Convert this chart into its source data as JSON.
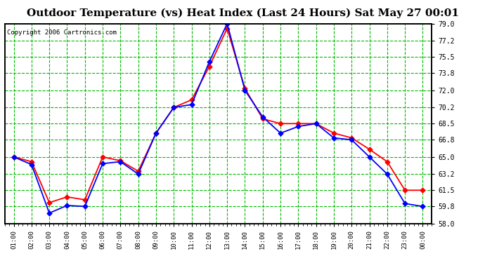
{
  "title": "Outdoor Temperature (vs) Heat Index (Last 24 Hours) Sat May 27 00:01",
  "copyright": "Copyright 2006 Cartronics.com",
  "x_labels": [
    "01:00",
    "02:00",
    "03:00",
    "04:00",
    "05:00",
    "06:00",
    "07:00",
    "08:00",
    "09:00",
    "10:00",
    "11:00",
    "12:00",
    "13:00",
    "14:00",
    "15:00",
    "16:00",
    "17:00",
    "18:00",
    "19:00",
    "20:00",
    "21:00",
    "22:00",
    "23:00",
    "00:00"
  ],
  "y_ticks": [
    58.0,
    59.8,
    61.5,
    63.2,
    65.0,
    66.8,
    68.5,
    70.2,
    72.0,
    73.8,
    75.5,
    77.2,
    79.0
  ],
  "blue_data": [
    65.0,
    64.2,
    59.1,
    59.9,
    59.8,
    64.3,
    64.5,
    63.2,
    67.5,
    70.2,
    70.5,
    75.0,
    79.0,
    72.0,
    69.2,
    67.5,
    68.2,
    68.5,
    67.0,
    66.8,
    65.0,
    63.2,
    60.1,
    59.8
  ],
  "red_data": [
    65.0,
    64.5,
    60.2,
    60.8,
    60.5,
    65.0,
    64.6,
    63.5,
    67.5,
    70.2,
    71.0,
    74.5,
    78.5,
    72.2,
    69.0,
    68.5,
    68.5,
    68.5,
    67.5,
    67.0,
    65.8,
    64.5,
    61.5,
    61.5
  ],
  "bg_color": "#ffffff",
  "plot_bg_color": "#ffffff",
  "grid_color": "#00bb00",
  "blue_color": "#0000ff",
  "red_color": "#ff0000",
  "title_fontsize": 11,
  "ylim": [
    58.0,
    79.0
  ],
  "border_color": "#000000"
}
